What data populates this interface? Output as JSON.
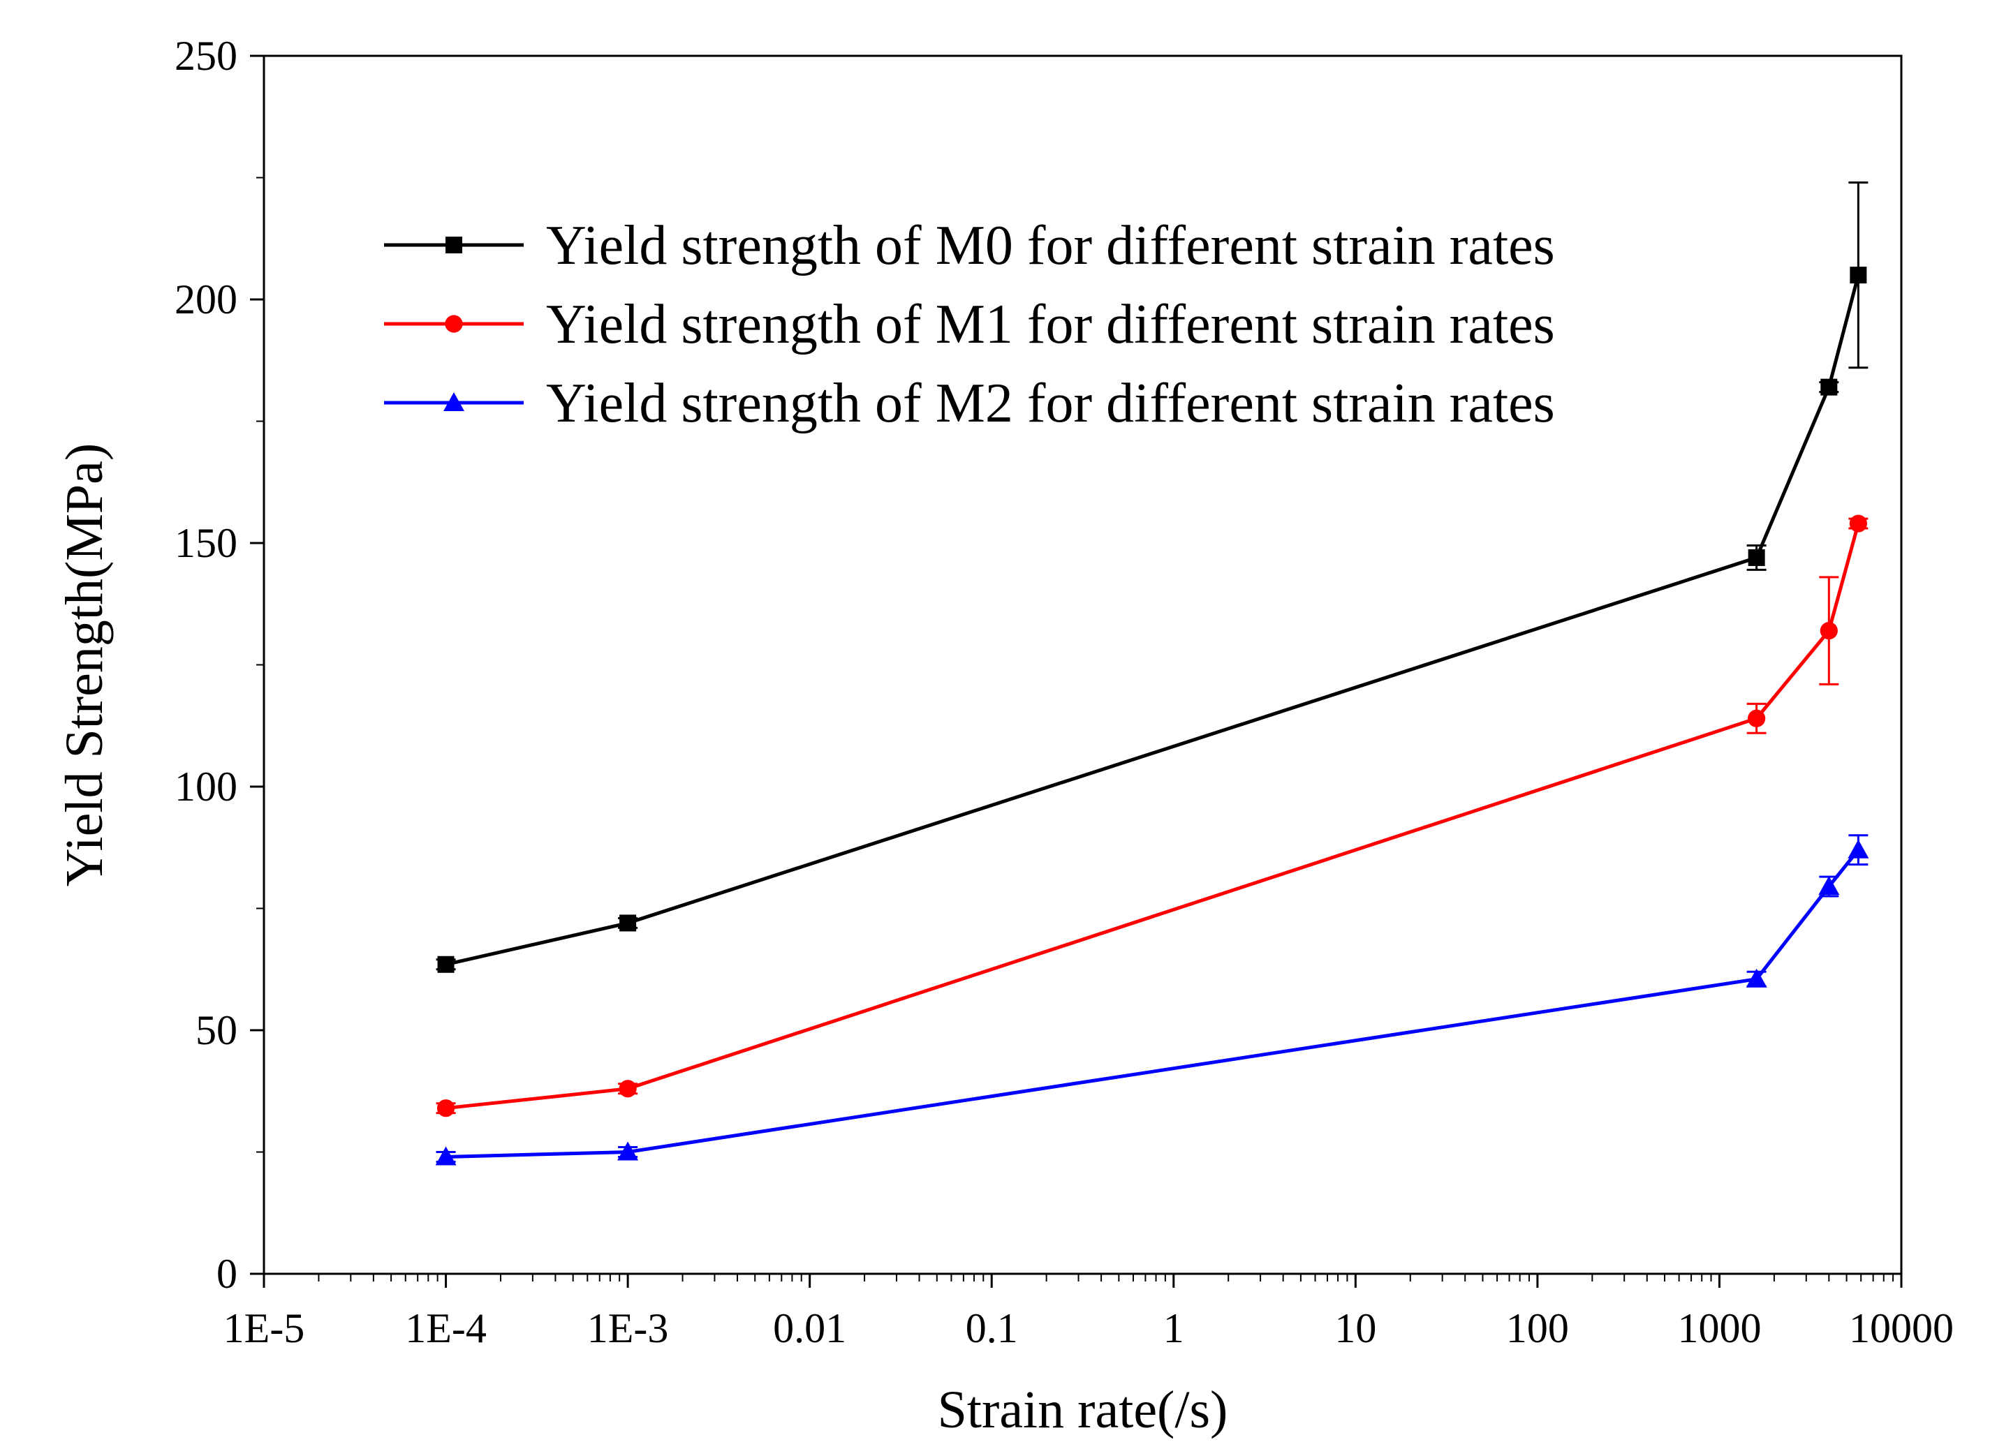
{
  "chart_data": {
    "type": "line",
    "title": "",
    "xlabel": "Strain rate(/s)",
    "ylabel": "Yield Strength(MPa)",
    "x_scale": "log",
    "xlim": [
      1e-05,
      10000
    ],
    "ylim": [
      0,
      250
    ],
    "x_ticks": [
      1e-05,
      0.0001,
      0.001,
      0.01,
      0.1,
      1,
      10,
      100,
      1000,
      10000
    ],
    "x_tick_labels": [
      "1E-5",
      "1E-4",
      "1E-3",
      "0.01",
      "0.1",
      "1",
      "10",
      "100",
      "1000",
      "10000"
    ],
    "y_ticks": [
      0,
      50,
      100,
      150,
      200,
      250
    ],
    "y_tick_labels": [
      "0",
      "50",
      "100",
      "150",
      "200",
      "250"
    ],
    "grid": false,
    "legend_position": "top-left",
    "series": [
      {
        "name": "Yield strength of M0 for different strain rates",
        "color": "#000000",
        "marker": "square",
        "x": [
          0.0001,
          0.001,
          1600,
          4000,
          5800
        ],
        "y": [
          63.5,
          72,
          147,
          182,
          205
        ],
        "err": [
          1,
          1,
          2.5,
          1,
          19
        ]
      },
      {
        "name": "Yield strength of M1 for different strain rates",
        "color": "#ff0000",
        "marker": "circle",
        "x": [
          0.0001,
          0.001,
          1600,
          4000,
          5800
        ],
        "y": [
          34,
          38,
          114,
          132,
          154
        ],
        "err": [
          1,
          1,
          3,
          11,
          1
        ]
      },
      {
        "name": "Yield strength of M2 for different strain rates",
        "color": "#0000ff",
        "marker": "triangle",
        "x": [
          0.0001,
          0.001,
          1600,
          4000,
          5800
        ],
        "y": [
          24,
          25,
          60.5,
          79.5,
          87
        ],
        "err": [
          1,
          1,
          1.5,
          2,
          3
        ]
      }
    ]
  }
}
